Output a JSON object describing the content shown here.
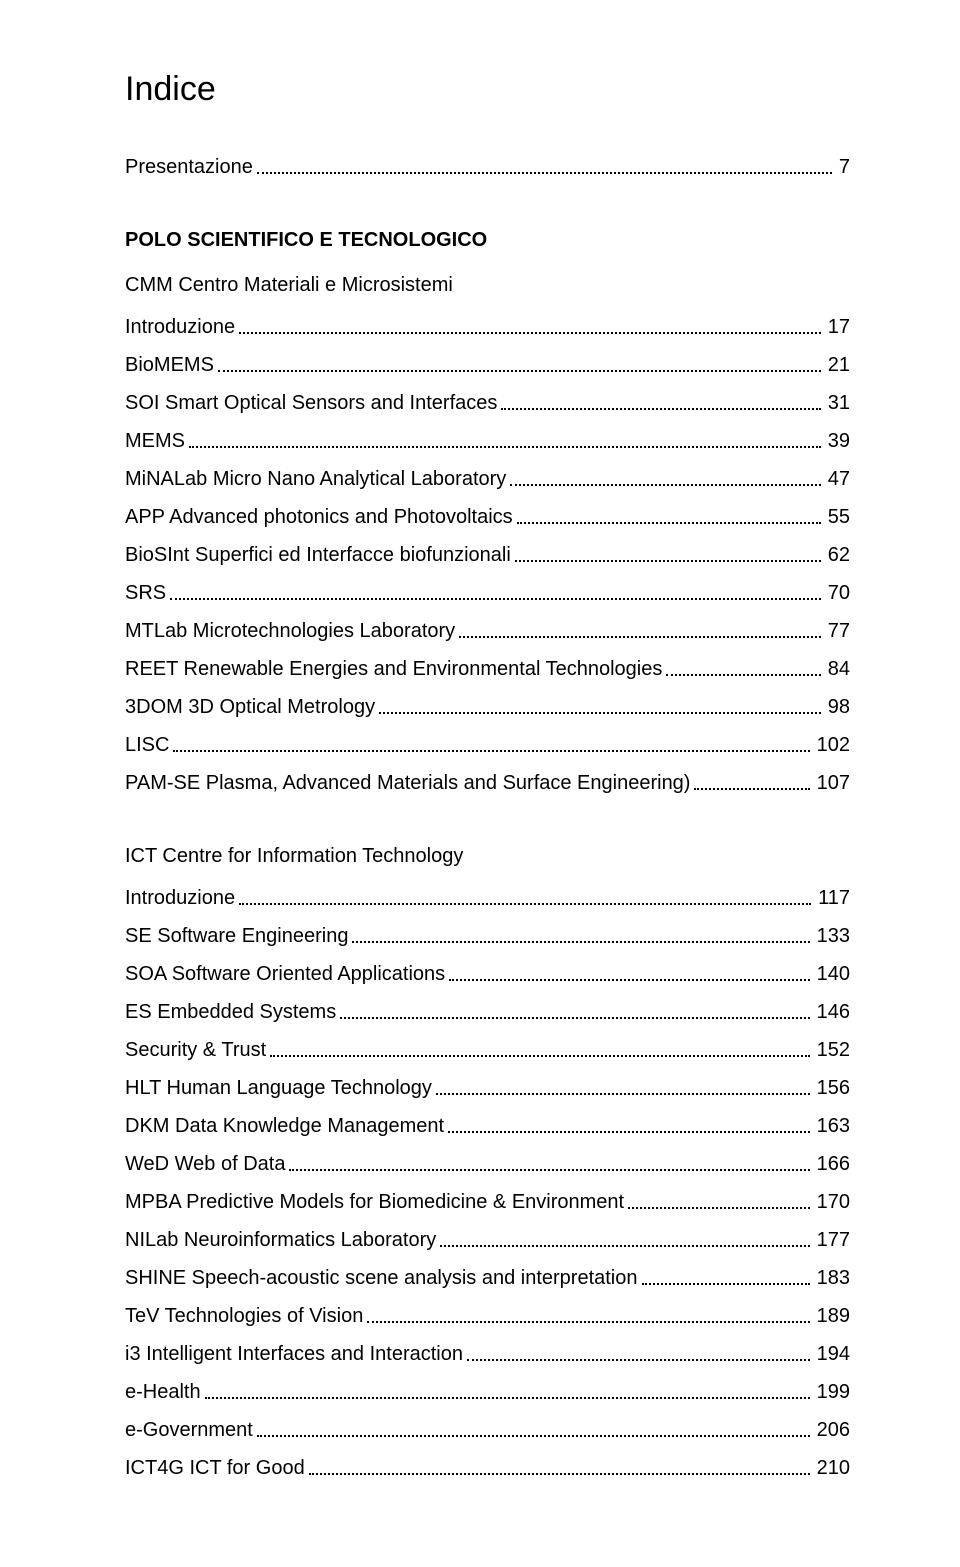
{
  "title": "Indice",
  "sections": [
    {
      "entries": [
        {
          "label": "Presentazione",
          "page": "7"
        }
      ]
    },
    {
      "heading": {
        "text": "POLO SCIENTIFICO E TECNOLOGICO",
        "style": "bold"
      },
      "subheading": {
        "text": "CMM Centro Materiali e Microsistemi",
        "style": "normal"
      },
      "entries": [
        {
          "label": "Introduzione",
          "page": "17"
        },
        {
          "label": "BioMEMS",
          "page": "21"
        },
        {
          "label": "SOI Smart Optical Sensors and Interfaces",
          "page": "31"
        },
        {
          "label": "MEMS",
          "page": "39"
        },
        {
          "label": "MiNALab Micro Nano Analytical Laboratory",
          "page": "47"
        },
        {
          "label": "APP Advanced photonics and Photovoltaics",
          "page": "55"
        },
        {
          "label": "BioSInt Superfici ed Interfacce biofunzionali",
          "page": "62"
        },
        {
          "label": "SRS",
          "page": "70"
        },
        {
          "label": "MTLab Microtechnologies Laboratory",
          "page": "77"
        },
        {
          "label": "REET Renewable Energies and Environmental Technologies",
          "page": "84"
        },
        {
          "label": "3DOM 3D Optical Metrology",
          "page": "98"
        },
        {
          "label": "LISC",
          "page": "102"
        },
        {
          "label": "PAM-SE Plasma, Advanced Materials and Surface Engineering)",
          "page": "107"
        }
      ]
    },
    {
      "subheading": {
        "text": "ICT Centre for Information Technology",
        "style": "normal"
      },
      "entries": [
        {
          "label": "Introduzione",
          "page": "117"
        },
        {
          "label": "SE Software Engineering",
          "page": "133"
        },
        {
          "label": "SOA Software Oriented Applications",
          "page": "140"
        },
        {
          "label": "ES Embedded Systems",
          "page": "146"
        },
        {
          "label": "Security & Trust",
          "page": "152"
        },
        {
          "label": "HLT Human Language Technology",
          "page": "156"
        },
        {
          "label": "DKM Data Knowledge Management",
          "page": "163"
        },
        {
          "label": "WeD Web of Data",
          "page": "166"
        },
        {
          "label": "MPBA Predictive Models for Biomedicine & Environment",
          "page": "170"
        },
        {
          "label": "NILab Neuroinformatics Laboratory",
          "page": "177"
        },
        {
          "label": "SHINE Speech-acoustic scene analysis and interpretation",
          "page": "183"
        },
        {
          "label": "TeV Technologies of Vision",
          "page": "189"
        },
        {
          "label": "i3 Intelligent Interfaces and Interaction",
          "page": "194"
        },
        {
          "label": "e-Health",
          "page": "199"
        },
        {
          "label": "e-Government",
          "page": "206"
        },
        {
          "label": "ICT4G ICT for Good",
          "page": "210"
        }
      ]
    }
  ]
}
